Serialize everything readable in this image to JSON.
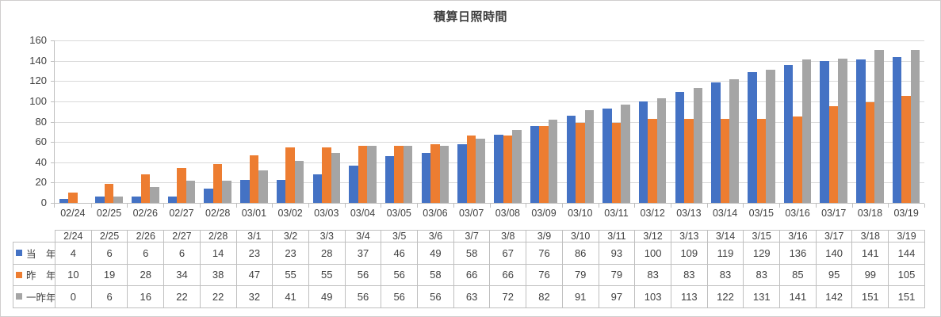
{
  "chart_data": {
    "type": "bar",
    "title": "積算日照時間",
    "categories": [
      "02/24",
      "02/25",
      "02/26",
      "02/27",
      "02/28",
      "03/01",
      "03/02",
      "03/03",
      "03/04",
      "03/05",
      "03/06",
      "03/07",
      "03/08",
      "03/09",
      "03/10",
      "03/11",
      "03/12",
      "03/13",
      "03/14",
      "03/15",
      "03/16",
      "03/17",
      "03/18",
      "03/19"
    ],
    "table_categories": [
      "2/24",
      "2/25",
      "2/26",
      "2/27",
      "2/28",
      "3/1",
      "3/2",
      "3/3",
      "3/4",
      "3/5",
      "3/6",
      "3/7",
      "3/8",
      "3/9",
      "3/10",
      "3/11",
      "3/12",
      "3/13",
      "3/14",
      "3/15",
      "3/16",
      "3/17",
      "3/18",
      "3/19"
    ],
    "series": [
      {
        "name": "当　年",
        "color": "#4472C4",
        "values": [
          4,
          6,
          6,
          6,
          14,
          23,
          23,
          28,
          37,
          46,
          49,
          58,
          67,
          76,
          86,
          93,
          100,
          109,
          119,
          129,
          136,
          140,
          141,
          144
        ]
      },
      {
        "name": "昨　年",
        "color": "#ED7D31",
        "values": [
          10,
          19,
          28,
          34,
          38,
          47,
          55,
          55,
          56,
          56,
          58,
          66,
          66,
          76,
          79,
          79,
          83,
          83,
          83,
          83,
          85,
          95,
          99,
          105
        ]
      },
      {
        "name": "一昨年",
        "color": "#A5A5A5",
        "values": [
          0,
          6,
          16,
          22,
          22,
          32,
          41,
          49,
          56,
          56,
          56,
          63,
          72,
          82,
          91,
          97,
          103,
          113,
          122,
          131,
          141,
          142,
          151,
          151
        ]
      }
    ],
    "xlabel": "",
    "ylabel": "",
    "ylim": [
      0,
      160
    ],
    "yticks": [
      0,
      20,
      40,
      60,
      80,
      100,
      120,
      140,
      160
    ],
    "grid": "horizontal",
    "legend_position": "data-table-row-keys",
    "colors": {
      "gridline": "#D9D9D9",
      "axis_line": "#BFBFBF",
      "table_border": "#BFBFBF",
      "chart_border": "#D0CECE",
      "text": "#404040",
      "background": "#FFFFFF"
    }
  }
}
